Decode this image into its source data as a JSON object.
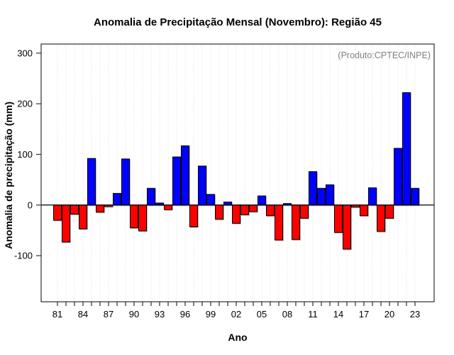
{
  "page": {
    "background": "#ffffff"
  },
  "chart_data": {
    "type": "bar",
    "title": "Anomalia de Precipitação Mensal (Novembro): Região 45",
    "annotation": "(Produto:CPTEC/INPE)",
    "xlabel": "Ano",
    "ylabel": "Anomalia de precipitação (mm)",
    "x": [
      "81",
      "82",
      "83",
      "84",
      "85",
      "86",
      "87",
      "88",
      "89",
      "90",
      "91",
      "92",
      "93",
      "94",
      "95",
      "96",
      "97",
      "98",
      "99",
      "00",
      "01",
      "02",
      "03",
      "04",
      "05",
      "06",
      "07",
      "08",
      "09",
      "10",
      "11",
      "12",
      "13",
      "14",
      "15",
      "16",
      "17",
      "18",
      "19",
      "20",
      "21",
      "22",
      "23"
    ],
    "values": [
      -30,
      -73,
      -18,
      -47,
      92,
      -14,
      -3,
      23,
      91,
      -45,
      -51,
      33,
      4,
      -9,
      95,
      117,
      -43,
      77,
      21,
      -28,
      6,
      -36,
      -19,
      -13,
      18,
      -21,
      -69,
      3,
      -68,
      -26,
      66,
      33,
      40,
      -54,
      -87,
      -4,
      -21,
      34,
      -52,
      -26,
      112,
      222,
      33
    ],
    "yticks": [
      -100,
      0,
      100,
      200,
      300
    ],
    "ylim": [
      -191,
      318
    ],
    "xtick_label_every": 3,
    "grid": "vertical-dotted",
    "legend": "none",
    "colors": {
      "positive": "#0000ff",
      "negative": "#ff0000",
      "grid": "#dadada",
      "axis": "#000000",
      "annotation": "#808080"
    }
  }
}
